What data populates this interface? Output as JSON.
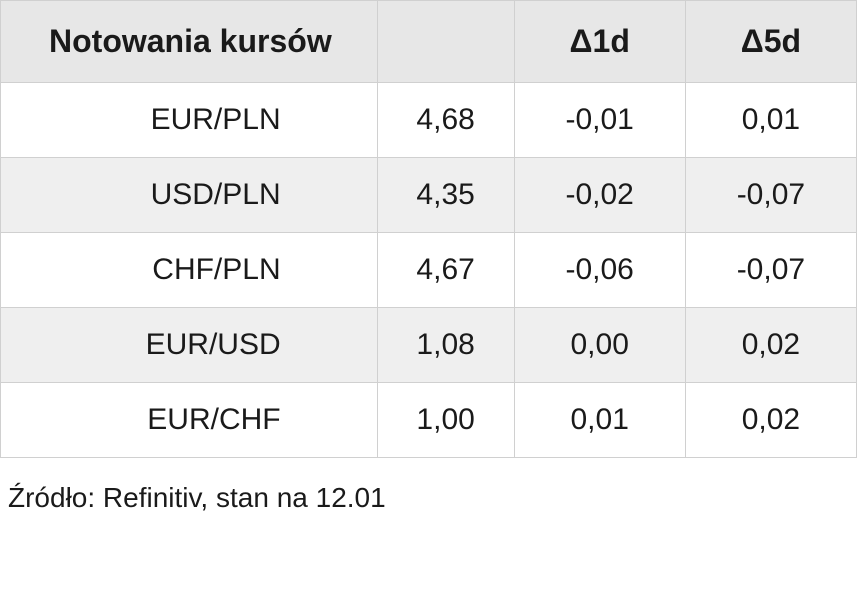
{
  "fx_table": {
    "type": "table",
    "header": {
      "title": "Notowania kursów",
      "delta1d_prefix": "Δ",
      "delta1d_suffix": "1d",
      "delta5d_prefix": "Δ",
      "delta5d_suffix": "5d"
    },
    "columns": [
      "pair",
      "rate",
      "d1d",
      "d5d"
    ],
    "column_alignment": [
      "right",
      "center",
      "center",
      "center"
    ],
    "header_bg": "#e7e7e7",
    "row_bg_even": "#ffffff",
    "row_bg_odd": "#efefef",
    "border_color": "#d0d0d0",
    "text_color": "#1a1a1a",
    "header_fontsize": 32,
    "cell_fontsize": 30,
    "rows": [
      {
        "pair": "EUR/PLN",
        "rate": "4,68",
        "d1d": "-0,01",
        "d5d": "0,01"
      },
      {
        "pair": "USD/PLN",
        "rate": "4,35",
        "d1d": "-0,02",
        "d5d": "-0,07"
      },
      {
        "pair": "CHF/PLN",
        "rate": "4,67",
        "d1d": "-0,06",
        "d5d": "-0,07"
      },
      {
        "pair": "EUR/USD",
        "rate": "1,08",
        "d1d": "0,00",
        "d5d": "0,02"
      },
      {
        "pair": "EUR/CHF",
        "rate": "1,00",
        "d1d": "0,01",
        "d5d": "0,02"
      }
    ]
  },
  "footnote": "Źródło: Refinitiv, stan na 12.01"
}
